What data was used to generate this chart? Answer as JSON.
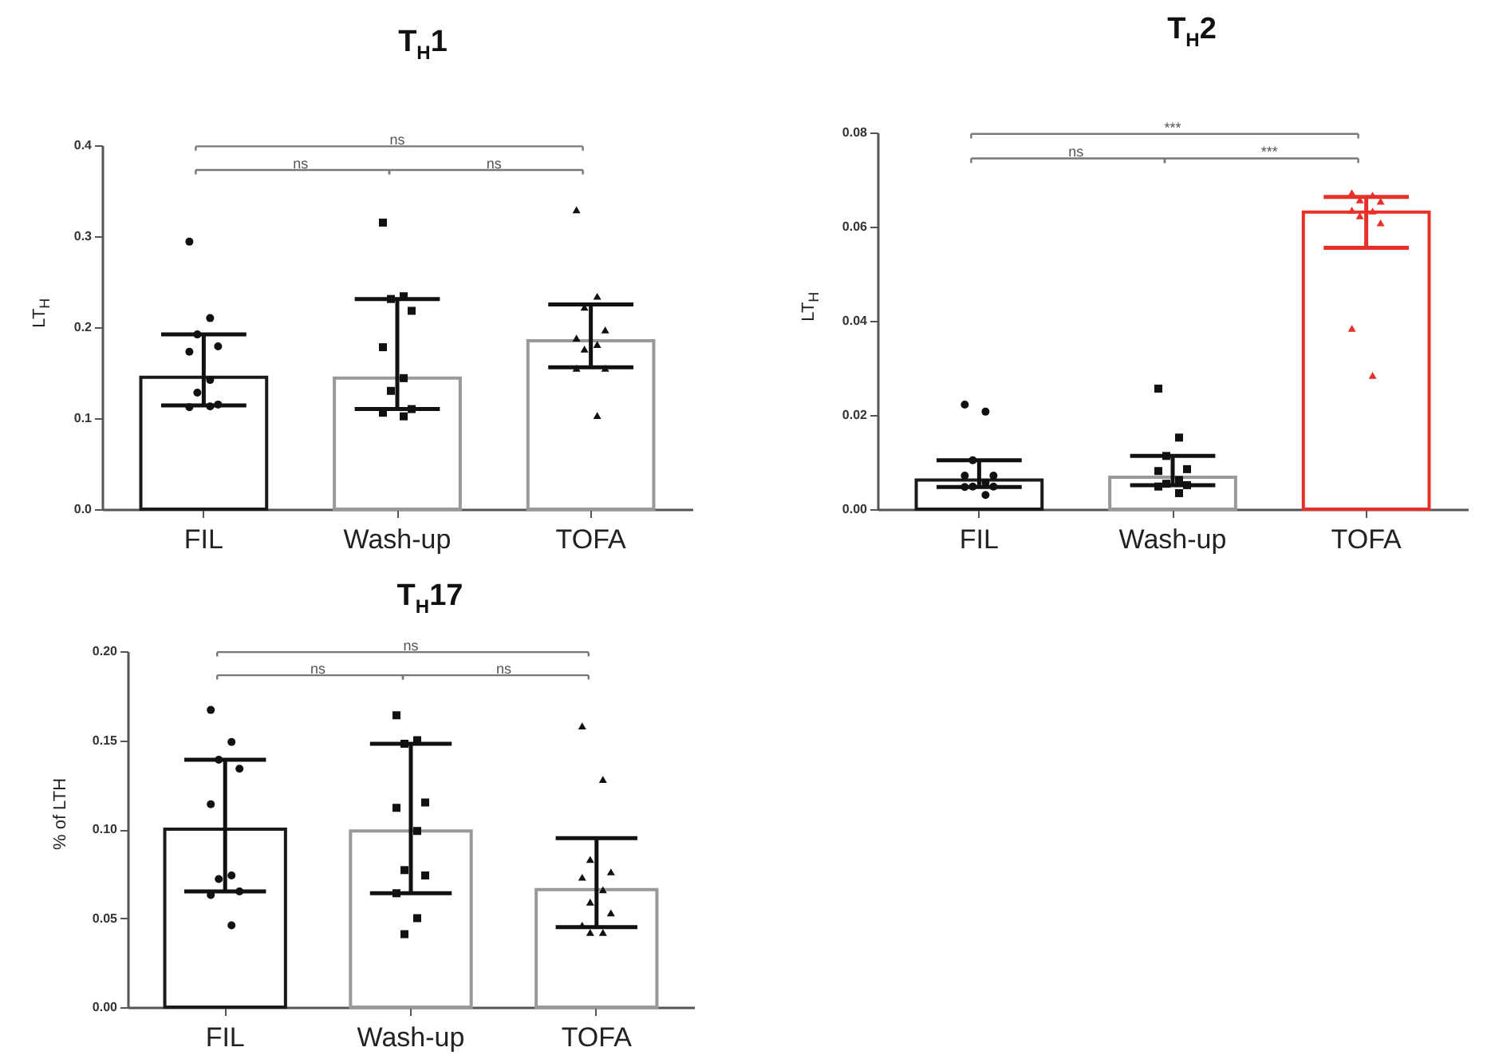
{
  "chart_data": [
    {
      "type": "bar",
      "title": "T$_{H}$1",
      "ylabel": "LT$_{H}$",
      "categories": [
        "FIL",
        "Wash-up",
        "TOFA"
      ],
      "values": [
        0.145,
        0.144,
        0.185
      ],
      "colors": [
        "#1a1a1a",
        "#999999",
        "#999999"
      ],
      "errors": [
        [
          0.114,
          0.192
        ],
        [
          0.11,
          0.231
        ],
        [
          0.156,
          0.225
        ]
      ],
      "ylim": [
        0,
        0.4
      ],
      "yticks": [
        {
          "value": 0,
          "label": "0.0"
        },
        0.1,
        0.2,
        0.3,
        0.4
      ],
      "grid": false,
      "annotations": [
        "ns",
        "ns",
        "ns"
      ],
      "series": [
        {
          "type": "scatter",
          "x": [
            "FIL",
            "FIL",
            "FIL",
            "FIL",
            "FIL",
            "FIL",
            "FIL",
            "FIL",
            "FIL",
            "FIL"
          ],
          "values": [
            0.294,
            0.21,
            0.192,
            0.179,
            0.173,
            0.142,
            0.128,
            0.115,
            0.112,
            0.113
          ],
          "color": "#111111",
          "marker": "circle"
        },
        {
          "type": "scatter",
          "x": [
            "Wash-up",
            "Wash-up",
            "Wash-up",
            "Wash-up",
            "Wash-up",
            "Wash-up",
            "Wash-up",
            "Wash-up",
            "Wash-up",
            "Wash-up"
          ],
          "values": [
            0.315,
            0.234,
            0.231,
            0.218,
            0.178,
            0.144,
            0.13,
            0.11,
            0.106,
            0.102
          ],
          "color": "#111111",
          "marker": "square"
        },
        {
          "type": "scatter",
          "x": [
            "TOFA",
            "TOFA",
            "TOFA",
            "TOFA",
            "TOFA",
            "TOFA",
            "TOFA",
            "TOFA",
            "TOFA",
            "TOFA"
          ],
          "values": [
            0.329,
            0.234,
            0.222,
            0.197,
            0.188,
            0.181,
            0.176,
            0.155,
            0.155,
            0.103
          ],
          "color": "#111111",
          "marker": "triangle"
        }
      ]
    },
    {
      "type": "bar",
      "title": "T$_{H}$2",
      "ylabel": "LT$_{H}$",
      "categories": [
        "FIL",
        "Wash-up",
        "TOFA"
      ],
      "values": [
        0.0062,
        0.0068,
        0.0631
      ],
      "colors": [
        "#1a1a1a",
        "#999999",
        "#e8302a"
      ],
      "errors": [
        [
          0.0047,
          0.0104
        ],
        [
          0.0051,
          0.0113
        ],
        [
          0.0555,
          0.0663
        ]
      ],
      "ylim": [
        0,
        0.08
      ],
      "yticks": [
        {
          "value": 0,
          "label": "0.00"
        },
        {
          "value": 0.02,
          "label": "0.02"
        },
        {
          "value": 0.04,
          "label": "0.04"
        },
        {
          "value": 0.06,
          "label": "0.06"
        },
        {
          "value": 0.08,
          "label": "0.08"
        }
      ],
      "grid": false,
      "annotations": [
        "***",
        "ns",
        "***"
      ],
      "series": [
        {
          "type": "scatter",
          "x": [
            "FIL",
            "FIL",
            "FIL",
            "FIL",
            "FIL",
            "FIL",
            "FIL",
            "FIL",
            "FIL",
            "FIL"
          ],
          "values": [
            0.0222,
            0.0207,
            0.0104,
            0.0071,
            0.0071,
            0.0056,
            0.0048,
            0.0048,
            0.0047,
            0.003
          ],
          "color": "#111111",
          "marker": "circle"
        },
        {
          "type": "scatter",
          "x": [
            "Wash-up",
            "Wash-up",
            "Wash-up",
            "Wash-up",
            "Wash-up",
            "Wash-up",
            "Wash-up",
            "Wash-up",
            "Wash-up",
            "Wash-up"
          ],
          "values": [
            0.0256,
            0.0152,
            0.0113,
            0.0085,
            0.0081,
            0.0062,
            0.0054,
            0.0051,
            0.0048,
            0.0034
          ],
          "color": "#111111",
          "marker": "square"
        },
        {
          "type": "scatter",
          "x": [
            "TOFA",
            "TOFA",
            "TOFA",
            "TOFA",
            "TOFA",
            "TOFA",
            "TOFA",
            "TOFA",
            "TOFA",
            "TOFA"
          ],
          "values": [
            0.0672,
            0.0667,
            0.0657,
            0.0654,
            0.0635,
            0.0633,
            0.0623,
            0.0608,
            0.0384,
            0.0284
          ],
          "color": "#e8302a",
          "marker": "triangle"
        }
      ]
    },
    {
      "type": "bar",
      "title": "T$_{H}$17",
      "ylabel": "% of LTH",
      "categories": [
        "FIL",
        "Wash-up",
        "TOFA"
      ],
      "values": [
        0.1,
        0.099,
        0.066
      ],
      "colors": [
        "#1a1a1a",
        "#999999",
        "#999999"
      ],
      "errors": [
        [
          0.065,
          0.139
        ],
        [
          0.064,
          0.148
        ],
        [
          0.045,
          0.095
        ]
      ],
      "ylim": [
        0,
        0.2
      ],
      "yticks": [
        {
          "value": 0,
          "label": "0.00"
        },
        {
          "value": 0.05,
          "label": "0.05"
        },
        {
          "value": 0.1,
          "label": "0.10"
        },
        {
          "value": 0.15,
          "label": "0.15"
        },
        {
          "value": 0.2,
          "label": "0.20"
        }
      ],
      "grid": false,
      "annotations": [
        "ns",
        "ns",
        "ns"
      ],
      "series": [
        {
          "type": "scatter",
          "x": [
            "FIL",
            "FIL",
            "FIL",
            "FIL",
            "FIL",
            "FIL",
            "FIL",
            "FIL",
            "FIL",
            "FIL"
          ],
          "values": [
            0.167,
            0.149,
            0.139,
            0.134,
            0.114,
            0.074,
            0.072,
            0.065,
            0.063,
            0.046
          ],
          "color": "#111111",
          "marker": "circle"
        },
        {
          "type": "scatter",
          "x": [
            "Wash-up",
            "Wash-up",
            "Wash-up",
            "Wash-up",
            "Wash-up",
            "Wash-up",
            "Wash-up",
            "Wash-up",
            "Wash-up",
            "Wash-up",
            "Wash-up"
          ],
          "values": [
            0.164,
            0.15,
            0.148,
            0.115,
            0.112,
            0.099,
            0.077,
            0.074,
            0.064,
            0.05,
            0.041
          ],
          "color": "#111111",
          "marker": "square"
        },
        {
          "type": "scatter",
          "x": [
            "TOFA",
            "TOFA",
            "TOFA",
            "TOFA",
            "TOFA",
            "TOFA",
            "TOFA",
            "TOFA",
            "TOFA",
            "TOFA",
            "TOFA"
          ],
          "values": [
            0.158,
            0.128,
            0.083,
            0.076,
            0.073,
            0.066,
            0.059,
            0.053,
            0.046,
            0.042,
            0.042
          ],
          "color": "#111111",
          "marker": "triangle"
        }
      ]
    }
  ]
}
